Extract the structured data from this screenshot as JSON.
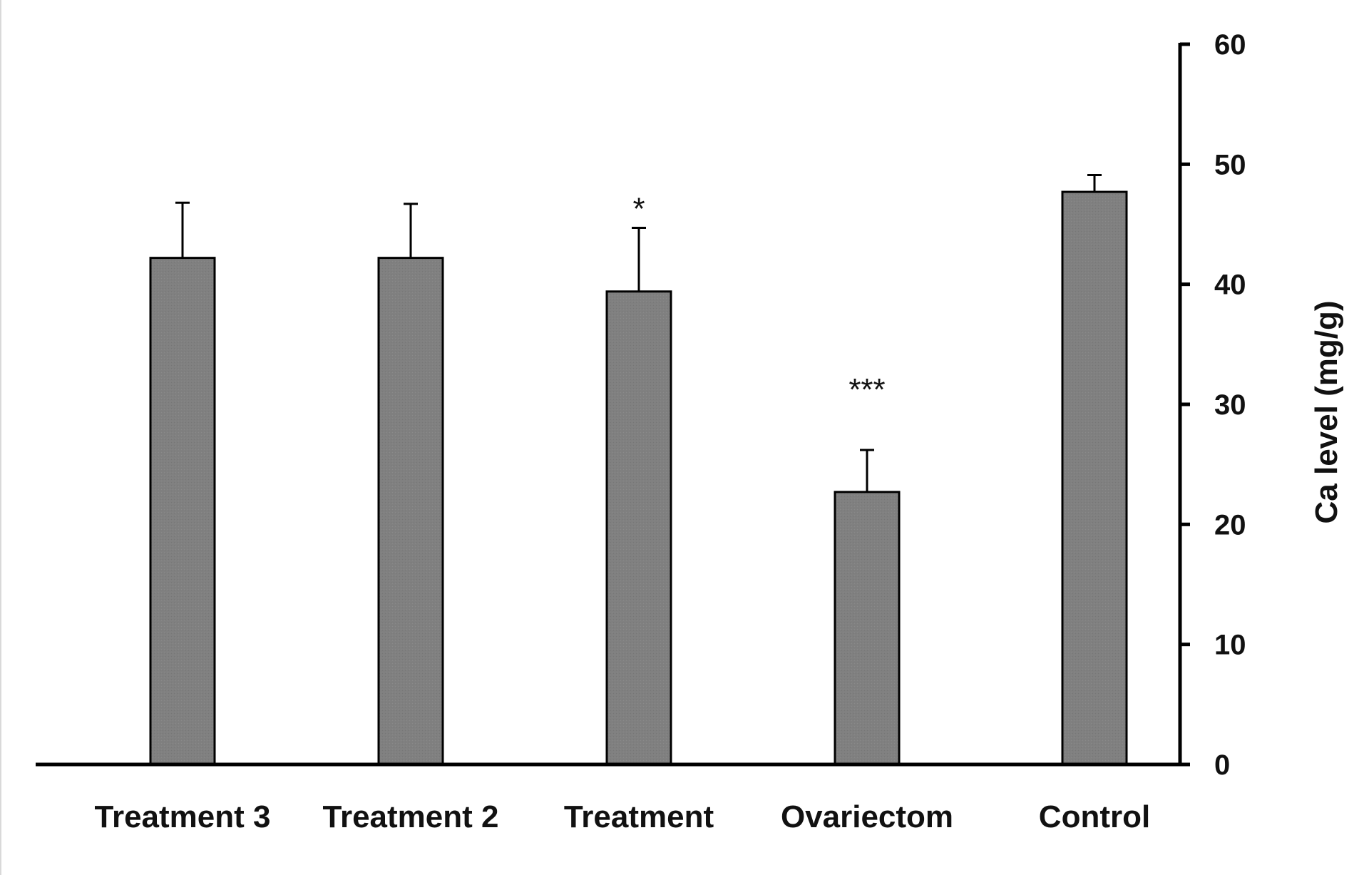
{
  "chart_data": {
    "type": "bar",
    "categories": [
      "Treatment 3",
      "Treatment 2",
      "Treatment",
      "Ovariectom",
      "Control"
    ],
    "values": [
      42.2,
      42.2,
      39.4,
      22.7,
      47.7
    ],
    "errors": [
      4.6,
      4.5,
      5.3,
      3.5,
      1.4
    ],
    "significance": [
      "",
      "",
      "*",
      "***",
      ""
    ],
    "title": "",
    "xlabel": "",
    "ylabel": "Ca level (mg/g)",
    "ylim": [
      0,
      60
    ],
    "yticks": [
      0,
      10,
      20,
      30,
      40,
      50,
      60
    ],
    "y_axis_side": "right",
    "grid": false,
    "bar_color": "#808080"
  }
}
